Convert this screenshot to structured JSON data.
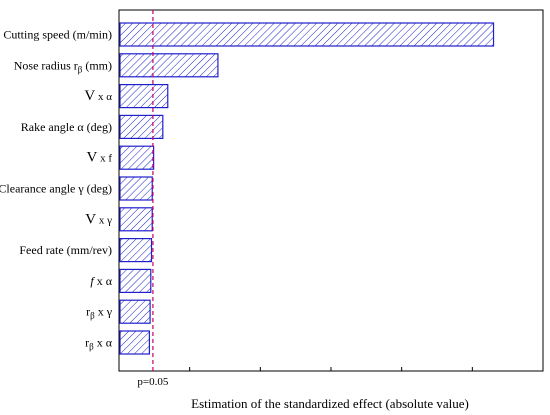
{
  "chart_data": {
    "type": "bar",
    "orientation": "horizontal",
    "title": "",
    "xlabel": "Estimation of the standardized effect (absolute value)",
    "ylabel": "",
    "categories": [
      {
        "main": "Cutting speed (m/min)",
        "sub": "",
        "tail": "",
        "style": "normal"
      },
      {
        "main": "Nose radius r",
        "sub": "β",
        "tail": " (mm)",
        "style": "normal"
      },
      {
        "main": "V",
        "sub": "",
        "tail": " x α",
        "style": "big"
      },
      {
        "main": "Rake angle α (deg)",
        "sub": "",
        "tail": "",
        "style": "normal"
      },
      {
        "main": "V",
        "sub": "",
        "tail": " x f",
        "style": "big"
      },
      {
        "main": "Clearance angle γ (deg)",
        "sub": "",
        "tail": "",
        "style": "normal"
      },
      {
        "main": "V",
        "sub": "",
        "tail": " x γ",
        "style": "big"
      },
      {
        "main": "Feed rate (mm/rev)",
        "sub": "",
        "tail": "",
        "style": "normal"
      },
      {
        "main": "f",
        "sub": "",
        "tail": " x α",
        "style": "italic"
      },
      {
        "main": "r",
        "sub": "β",
        "tail": " x γ",
        "style": "normal"
      },
      {
        "main": "r",
        "sub": "β",
        "tail": " x α",
        "style": "normal"
      }
    ],
    "values": [
      26.5,
      7.0,
      3.45,
      3.1,
      2.45,
      2.35,
      2.35,
      2.3,
      2.25,
      2.2,
      2.15
    ],
    "xlim": [
      0,
      30
    ],
    "xticks_labeled": false,
    "grid": false,
    "reference_line": {
      "value": 2.4,
      "label": "p=0.05",
      "color": "#cc0066"
    },
    "bar_color": "#1f1fcc",
    "bar_fill": "hatched"
  }
}
